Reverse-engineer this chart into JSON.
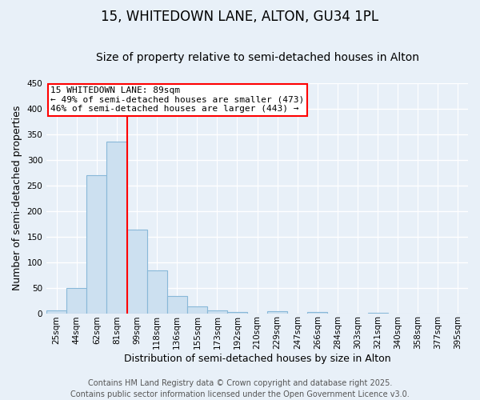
{
  "title": "15, WHITEDOWN LANE, ALTON, GU34 1PL",
  "subtitle": "Size of property relative to semi-detached houses in Alton",
  "xlabel": "Distribution of semi-detached houses by size in Alton",
  "ylabel": "Number of semi-detached properties",
  "categories": [
    "25sqm",
    "44sqm",
    "62sqm",
    "81sqm",
    "99sqm",
    "118sqm",
    "136sqm",
    "155sqm",
    "173sqm",
    "192sqm",
    "210sqm",
    "229sqm",
    "247sqm",
    "266sqm",
    "284sqm",
    "303sqm",
    "321sqm",
    "340sqm",
    "358sqm",
    "377sqm",
    "395sqm"
  ],
  "values": [
    5,
    50,
    270,
    335,
    163,
    83,
    33,
    14,
    5,
    2,
    0,
    4,
    0,
    3,
    0,
    0,
    1,
    0,
    0,
    0,
    0
  ],
  "bar_color": "#cce0f0",
  "bar_edge_color": "#88b8d8",
  "red_line_x": 3.5,
  "annotation_line1": "15 WHITEDOWN LANE: 89sqm",
  "annotation_line2": "← 49% of semi-detached houses are smaller (473)",
  "annotation_line3": "46% of semi-detached houses are larger (443) →",
  "annotation_box_color": "white",
  "annotation_box_edge_color": "red",
  "ylim": [
    0,
    450
  ],
  "yticks": [
    0,
    50,
    100,
    150,
    200,
    250,
    300,
    350,
    400,
    450
  ],
  "footer_line1": "Contains HM Land Registry data © Crown copyright and database right 2025.",
  "footer_line2": "Contains public sector information licensed under the Open Government Licence v3.0.",
  "plot_bg_color": "#e8f0f8",
  "fig_bg_color": "#e8f0f8",
  "grid_color": "white",
  "title_fontsize": 12,
  "subtitle_fontsize": 10,
  "axis_label_fontsize": 9,
  "tick_fontsize": 7.5,
  "footer_fontsize": 7,
  "annotation_fontsize": 8
}
